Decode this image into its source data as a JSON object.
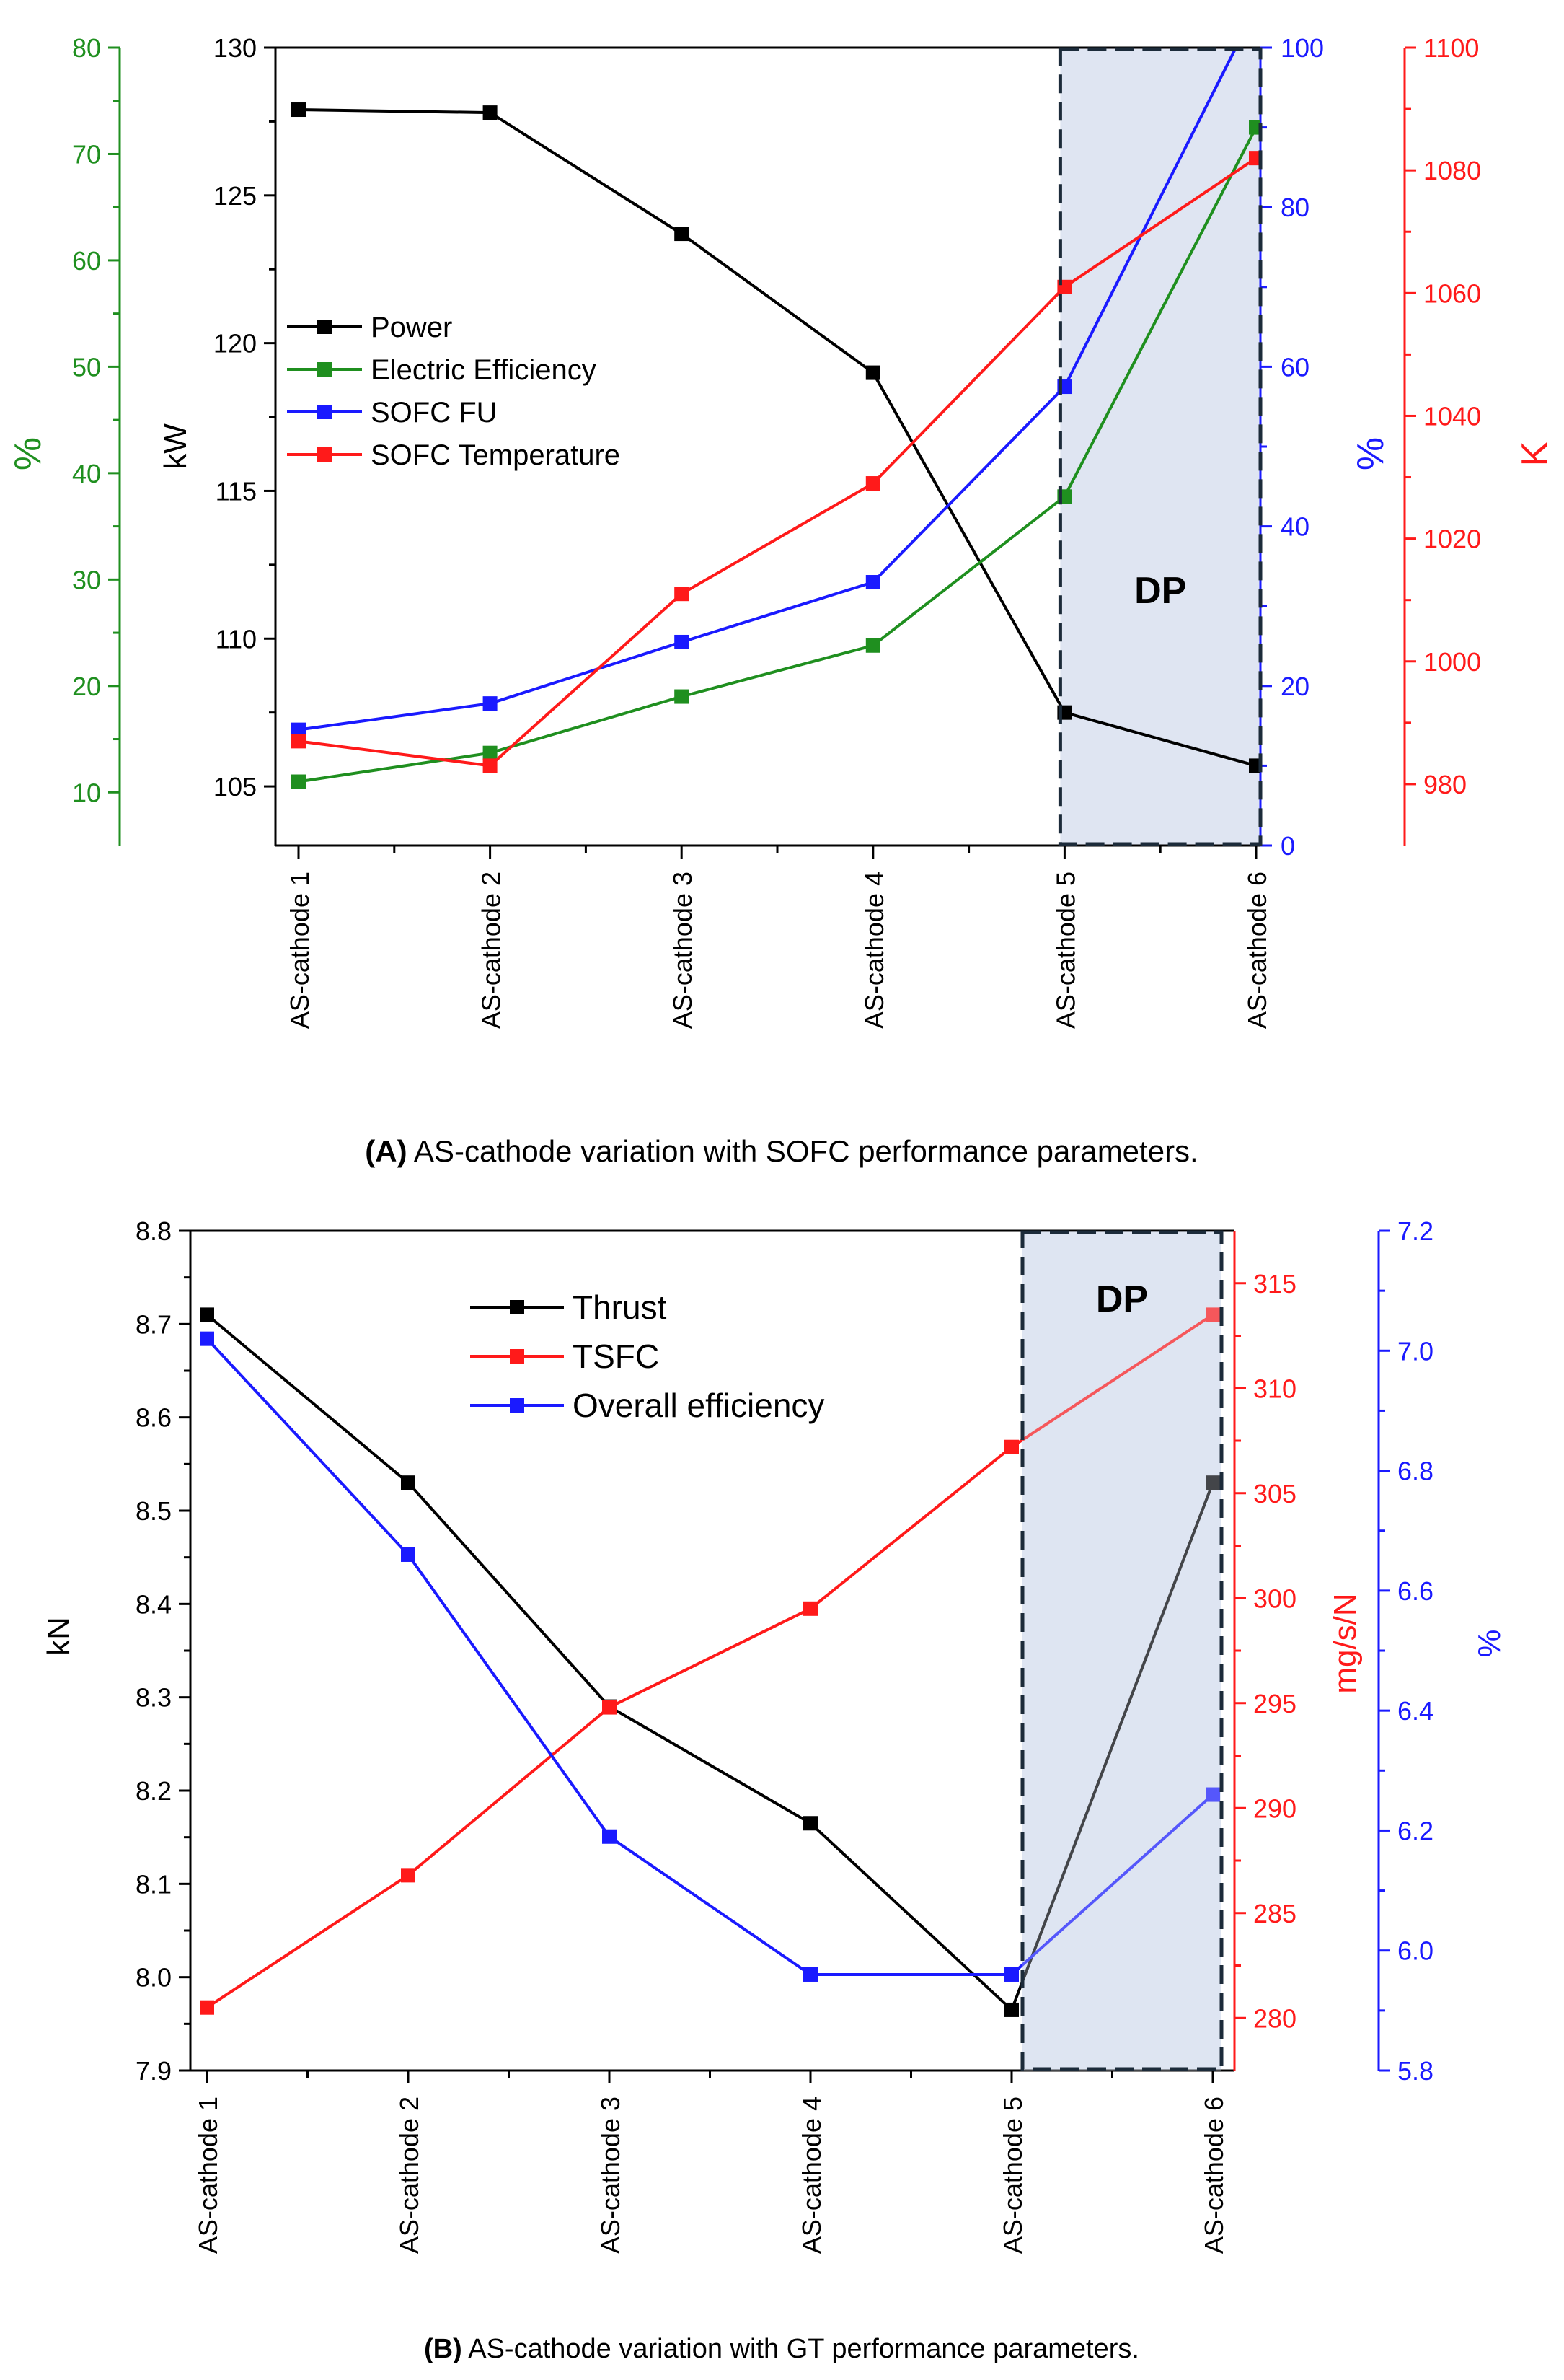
{
  "colors": {
    "black": "#000000",
    "green": "#1f8f1f",
    "blue": "#1a1aff",
    "red": "#ff1a1a",
    "dp_fill": "#dfe5f2",
    "dp_border": "#1c2b3a"
  },
  "chart_data": [
    {
      "type": "line",
      "caption": {
        "label": "(A)",
        "text": " AS-cathode variation with SOFC performance parameters."
      },
      "categories": [
        "AS-cathode 1",
        "AS-cathode 2",
        "AS-cathode 3",
        "AS-cathode 4",
        "AS-cathode 5",
        "AS-cathode 6"
      ],
      "axes": {
        "kw": {
          "label": "kW",
          "min": 103,
          "max": 130,
          "ticks": [
            105,
            110,
            115,
            120,
            125,
            130
          ],
          "color": "#000000"
        },
        "pct_green": {
          "label": "%",
          "min": 5,
          "max": 80,
          "ticks": [
            10,
            20,
            30,
            40,
            50,
            60,
            70,
            80
          ],
          "color": "#1f8f1f"
        },
        "pct_blue": {
          "label": "%",
          "min": 0,
          "max": 100,
          "ticks": [
            0,
            20,
            40,
            60,
            80,
            100
          ],
          "color": "#1a1aff"
        },
        "kelvin": {
          "label": "K",
          "min": 970,
          "max": 1100,
          "ticks": [
            980,
            1000,
            1020,
            1040,
            1060,
            1080,
            1100
          ],
          "color": "#ff1a1a"
        }
      },
      "series": [
        {
          "name": "Power",
          "axis": "kw",
          "color": "#000000",
          "values": [
            127.9,
            127.8,
            123.7,
            119.0,
            107.5,
            105.7
          ]
        },
        {
          "name": "Electric Efficiency",
          "axis": "pct_green",
          "color": "#1f8f1f",
          "values": [
            11.0,
            13.7,
            19.0,
            23.8,
            37.8,
            72.5
          ]
        },
        {
          "name": "SOFC FU",
          "axis": "pct_blue",
          "color": "#1a1aff",
          "values": [
            14.5,
            17.8,
            25.5,
            33.0,
            57.5,
            105.0
          ]
        },
        {
          "name": "SOFC Temperature",
          "axis": "kelvin",
          "color": "#ff1a1a",
          "values": [
            987.0,
            983.0,
            1011.0,
            1029.0,
            1061.0,
            1082.0
          ]
        }
      ],
      "highlight": {
        "label": "DP",
        "from": "AS-cathode 5",
        "to": "AS-cathode 6"
      }
    },
    {
      "type": "line",
      "caption": {
        "label": "(B)",
        "text": " AS-cathode variation with GT performance parameters."
      },
      "categories": [
        "AS-cathode 1",
        "AS-cathode 2",
        "AS-cathode 3",
        "AS-cathode 4",
        "AS-cathode 5",
        "AS-cathode 6"
      ],
      "axes": {
        "kn": {
          "label": "kN",
          "min": 7.9,
          "max": 8.8,
          "ticks": [
            "7.9",
            "8.0",
            "8.1",
            "8.2",
            "8.3",
            "8.4",
            "8.5",
            "8.6",
            "8.7",
            "8.8"
          ],
          "color": "#000000"
        },
        "tsfc": {
          "label": "mg/s/N",
          "min": 277.5,
          "max": 317.5,
          "ticks": [
            "280",
            "285",
            "290",
            "295",
            "300",
            "305",
            "310",
            "315"
          ],
          "color": "#ff1a1a"
        },
        "pct": {
          "label": "%",
          "min": 5.8,
          "max": 7.2,
          "ticks": [
            "5.8",
            "6.0",
            "6.2",
            "6.4",
            "6.6",
            "6.8",
            "7.0",
            "7.2"
          ],
          "color": "#1a1aff"
        }
      },
      "series": [
        {
          "name": "Thrust",
          "axis": "kn",
          "color": "#000000",
          "values": [
            8.71,
            8.53,
            8.29,
            8.165,
            7.965,
            8.53
          ]
        },
        {
          "name": "TSFC",
          "axis": "tsfc",
          "color": "#ff1a1a",
          "values": [
            280.5,
            286.8,
            294.8,
            299.5,
            307.2,
            313.5
          ]
        },
        {
          "name": "Overall efficiency",
          "axis": "pct",
          "color": "#1a1aff",
          "values": [
            7.02,
            6.66,
            6.19,
            5.96,
            5.96,
            6.26
          ]
        }
      ],
      "highlight": {
        "label": "DP",
        "from": "AS-cathode 5",
        "to": "AS-cathode 6"
      }
    }
  ]
}
